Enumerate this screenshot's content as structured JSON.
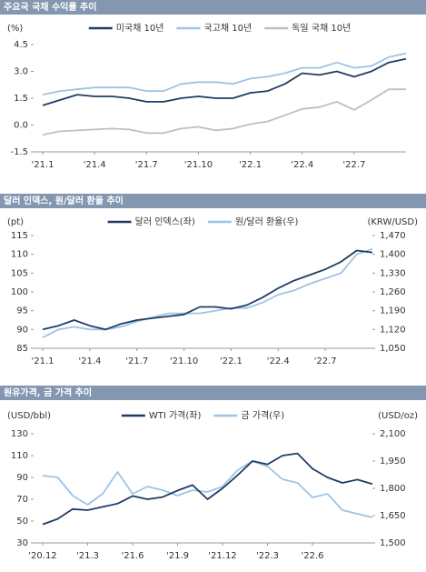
{
  "chart_data": [
    {
      "type": "line",
      "title": "주요국 국채 수익률 추이",
      "y_label": "(%)",
      "categories": [
        "'21.1",
        null,
        null,
        "'21.4",
        null,
        null,
        "'21.7",
        null,
        null,
        "'21.10",
        null,
        null,
        "'22.1",
        null,
        null,
        "'22.4",
        null,
        null,
        "'22.7",
        null,
        null,
        null
      ],
      "series": [
        {
          "name": "미국채 10년",
          "color": "#1f3d64",
          "values": [
            1.1,
            1.4,
            1.7,
            1.6,
            1.6,
            1.5,
            1.3,
            1.3,
            1.5,
            1.6,
            1.5,
            1.5,
            1.8,
            1.9,
            2.3,
            2.9,
            2.8,
            3.0,
            2.7,
            3.0,
            3.5,
            3.7
          ]
        },
        {
          "name": "국고채 10년",
          "color": "#9dc3e6",
          "values": [
            1.7,
            1.9,
            2.0,
            2.1,
            2.1,
            2.1,
            1.9,
            1.9,
            2.3,
            2.4,
            2.4,
            2.3,
            2.6,
            2.7,
            2.9,
            3.2,
            3.2,
            3.5,
            3.2,
            3.3,
            3.8,
            4.0
          ]
        },
        {
          "name": "독일 국채 10년",
          "color": "#bfbfbf",
          "values": [
            -0.55,
            -0.35,
            -0.3,
            -0.25,
            -0.2,
            -0.25,
            -0.45,
            -0.45,
            -0.2,
            -0.1,
            -0.3,
            -0.2,
            0.05,
            0.2,
            0.55,
            0.9,
            1.0,
            1.3,
            0.85,
            1.4,
            2.0,
            2.0
          ]
        }
      ],
      "ylim": [
        -1.5,
        4.5
      ],
      "yticks": [
        -1.5,
        {
          "value": 0,
          "label": "0.0"
        },
        1.5,
        {
          "value": 3,
          "label": "3.0"
        },
        4.5
      ]
    },
    {
      "type": "line",
      "title": "달러 인덱스, 원/달러 환율 추이",
      "y_label": "(pt)",
      "y2_label": "(KRW/USD)",
      "categories": [
        "'21.1",
        null,
        null,
        "'21.4",
        null,
        null,
        "'21.7",
        null,
        null,
        "'21.10",
        null,
        null,
        "'22.1",
        null,
        null,
        "'22.4",
        null,
        null,
        "'22.7",
        null,
        null,
        null
      ],
      "series": [
        {
          "name": "달러 인덱스(좌)",
          "color": "#1f3d64",
          "values": [
            90,
            91,
            92.5,
            91,
            90,
            91.5,
            92.5,
            93,
            93.5,
            94,
            96,
            96,
            95.5,
            96.5,
            98.5,
            101,
            103,
            104.5,
            106,
            108,
            111,
            110.5
          ]
        },
        {
          "name": "원/달러 환율(우)",
          "color": "#9dc3e6",
          "axis": "y2",
          "values": [
            1090,
            1120,
            1130,
            1120,
            1120,
            1130,
            1150,
            1165,
            1180,
            1180,
            1180,
            1190,
            1200,
            1200,
            1220,
            1250,
            1265,
            1290,
            1310,
            1330,
            1400,
            1420
          ]
        }
      ],
      "ylim": [
        85,
        115
      ],
      "yticks": [
        85,
        90,
        95,
        100,
        105,
        110,
        115
      ],
      "y2lim": [
        1050,
        1470
      ],
      "y2ticks": [
        {
          "value": 1050,
          "label": "1,050"
        },
        {
          "value": 1120,
          "label": "1,120"
        },
        {
          "value": 1190,
          "label": "1,190"
        },
        {
          "value": 1260,
          "label": "1,260"
        },
        {
          "value": 1330,
          "label": "1,330"
        },
        {
          "value": 1400,
          "label": "1,400"
        },
        {
          "value": 1470,
          "label": "1,470"
        }
      ]
    },
    {
      "type": "line",
      "title": "원유가격, 금 가격 추이",
      "y_label": "(USD/bbl)",
      "y2_label": "(USD/oz)",
      "categories": [
        "'20.12",
        null,
        null,
        "'21.3",
        null,
        null,
        "'21.6",
        null,
        null,
        "'21.9",
        null,
        null,
        "'21.12",
        null,
        null,
        "'22.3",
        null,
        null,
        "'22.6",
        null,
        null,
        null,
        null
      ],
      "series": [
        {
          "name": "WTI 가격(좌)",
          "color": "#1f3d64",
          "values": [
            47,
            52,
            61,
            60,
            63,
            66,
            73,
            70,
            72,
            78,
            83,
            70,
            80,
            92,
            105,
            102,
            110,
            112,
            98,
            90,
            85,
            88,
            84
          ]
        },
        {
          "name": "금 가격(우)",
          "color": "#9dc3e6",
          "axis": "y2",
          "values": [
            1870,
            1860,
            1760,
            1710,
            1770,
            1890,
            1770,
            1810,
            1790,
            1760,
            1790,
            1780,
            1810,
            1900,
            1950,
            1920,
            1850,
            1830,
            1750,
            1770,
            1680,
            1660,
            1640
          ]
        }
      ],
      "ylim": [
        30,
        130
      ],
      "yticks": [
        30,
        50,
        70,
        90,
        110,
        130
      ],
      "y2lim": [
        1500,
        2100
      ],
      "y2ticks": [
        {
          "value": 1500,
          "label": "1,500"
        },
        {
          "value": 1650,
          "label": "1,650"
        },
        {
          "value": 1800,
          "label": "1,800"
        },
        {
          "value": 1950,
          "label": "1,950"
        },
        {
          "value": 2100,
          "label": "2,100"
        }
      ]
    }
  ]
}
